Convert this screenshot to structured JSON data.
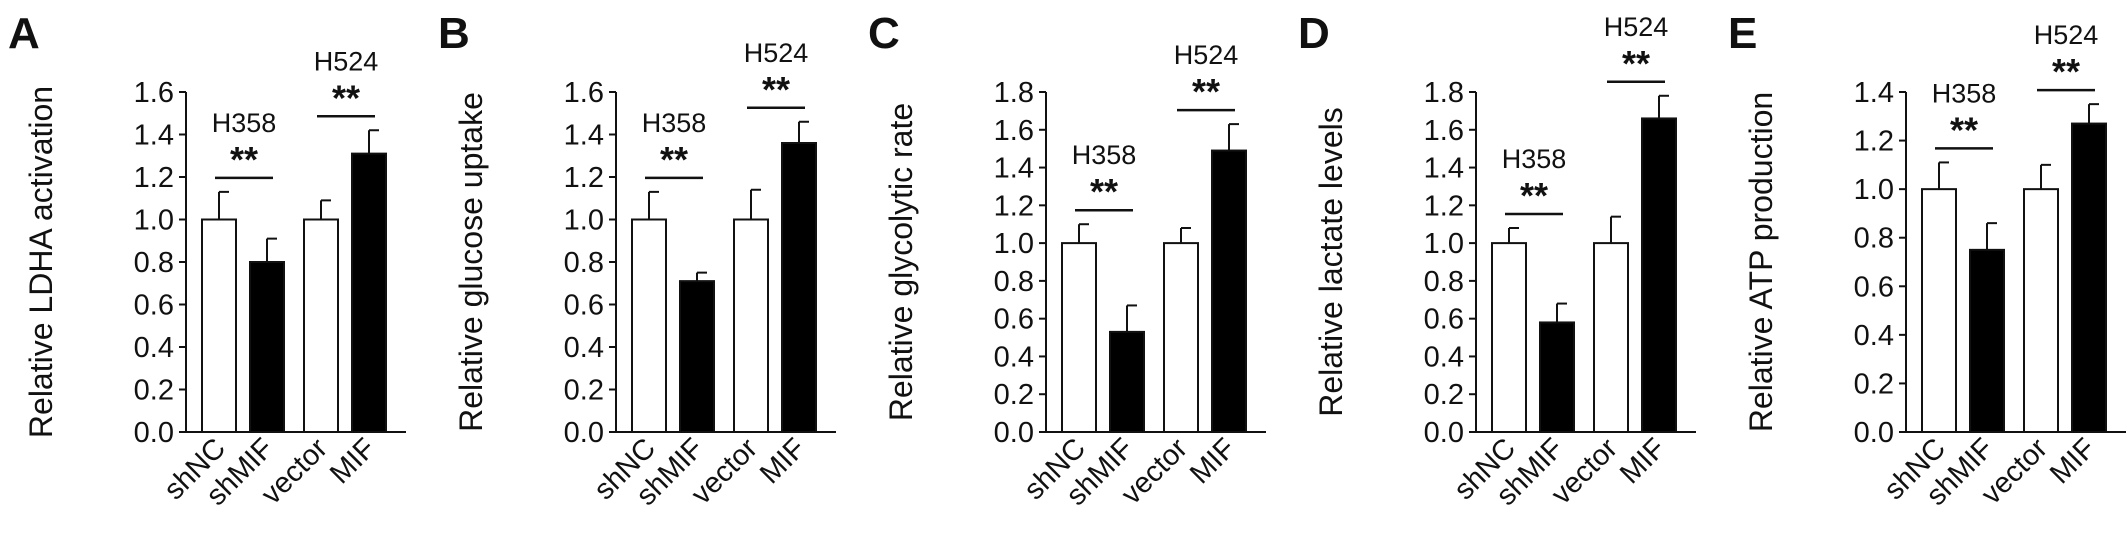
{
  "chart_data": [
    {
      "type": "bar",
      "panel": "A",
      "ylabel": "Relative LDHA activation",
      "ylim": [
        0,
        1.6
      ],
      "yticks": [
        "0.0",
        "0.2",
        "0.4",
        "0.6",
        "0.8",
        "1.0",
        "1.2",
        "1.4",
        "1.6"
      ],
      "categories": [
        "shNC",
        "shMIF",
        "vector",
        "MIF"
      ],
      "values": [
        1.0,
        0.8,
        1.0,
        1.31
      ],
      "errors": [
        0.13,
        0.11,
        0.09,
        0.11
      ],
      "fills": [
        "#ffffff",
        "#000000",
        "#ffffff",
        "#000000"
      ],
      "groups": [
        {
          "label": "H358",
          "bars": [
            0,
            1
          ],
          "sig": "**"
        },
        {
          "label": "H524",
          "bars": [
            2,
            3
          ],
          "sig": "**"
        }
      ]
    },
    {
      "type": "bar",
      "panel": "B",
      "ylabel": "Relative glucose uptake",
      "ylim": [
        0,
        1.6
      ],
      "yticks": [
        "0.0",
        "0.2",
        "0.4",
        "0.6",
        "0.8",
        "1.0",
        "1.2",
        "1.4",
        "1.6"
      ],
      "categories": [
        "shNC",
        "shMIF",
        "vector",
        "MIF"
      ],
      "values": [
        1.0,
        0.71,
        1.0,
        1.36
      ],
      "errors": [
        0.13,
        0.04,
        0.14,
        0.1
      ],
      "fills": [
        "#ffffff",
        "#000000",
        "#ffffff",
        "#000000"
      ],
      "groups": [
        {
          "label": "H358",
          "bars": [
            0,
            1
          ],
          "sig": "**"
        },
        {
          "label": "H524",
          "bars": [
            2,
            3
          ],
          "sig": "**"
        }
      ]
    },
    {
      "type": "bar",
      "panel": "C",
      "ylabel": "Relative glycolytic rate",
      "ylim": [
        0,
        1.8
      ],
      "yticks": [
        "0.0",
        "0.2",
        "0.4",
        "0.6",
        "0.8",
        "1.0",
        "1.2",
        "1.4",
        "1.6",
        "1.8"
      ],
      "categories": [
        "shNC",
        "shMIF",
        "vector",
        "MIF"
      ],
      "values": [
        1.0,
        0.53,
        1.0,
        1.49
      ],
      "errors": [
        0.1,
        0.14,
        0.08,
        0.14
      ],
      "fills": [
        "#ffffff",
        "#000000",
        "#ffffff",
        "#000000"
      ],
      "groups": [
        {
          "label": "H358",
          "bars": [
            0,
            1
          ],
          "sig": "**"
        },
        {
          "label": "H524",
          "bars": [
            2,
            3
          ],
          "sig": "**"
        }
      ]
    },
    {
      "type": "bar",
      "panel": "D",
      "ylabel": "Relative lactate levels",
      "ylim": [
        0,
        1.8
      ],
      "yticks": [
        "0.0",
        "0.2",
        "0.4",
        "0.6",
        "0.8",
        "1.0",
        "1.2",
        "1.4",
        "1.6",
        "1.8"
      ],
      "categories": [
        "shNC",
        "shMIF",
        "vector",
        "MIF"
      ],
      "values": [
        1.0,
        0.58,
        1.0,
        1.66
      ],
      "errors": [
        0.08,
        0.1,
        0.14,
        0.12
      ],
      "fills": [
        "#ffffff",
        "#000000",
        "#ffffff",
        "#000000"
      ],
      "groups": [
        {
          "label": "H358",
          "bars": [
            0,
            1
          ],
          "sig": "**"
        },
        {
          "label": "H524",
          "bars": [
            2,
            3
          ],
          "sig": "**"
        }
      ]
    },
    {
      "type": "bar",
      "panel": "E",
      "ylabel": "Relative ATP production",
      "ylim": [
        0,
        1.4
      ],
      "yticks": [
        "0.0",
        "0.2",
        "0.4",
        "0.6",
        "0.8",
        "1.0",
        "1.2",
        "1.4"
      ],
      "categories": [
        "shNC",
        "shMIF",
        "vector",
        "MIF"
      ],
      "values": [
        1.0,
        0.75,
        1.0,
        1.27
      ],
      "errors": [
        0.11,
        0.11,
        0.1,
        0.08
      ],
      "fills": [
        "#ffffff",
        "#000000",
        "#ffffff",
        "#000000"
      ],
      "groups": [
        {
          "label": "H358",
          "bars": [
            0,
            1
          ],
          "sig": "**"
        },
        {
          "label": "H524",
          "bars": [
            2,
            3
          ],
          "sig": "**"
        }
      ]
    }
  ]
}
